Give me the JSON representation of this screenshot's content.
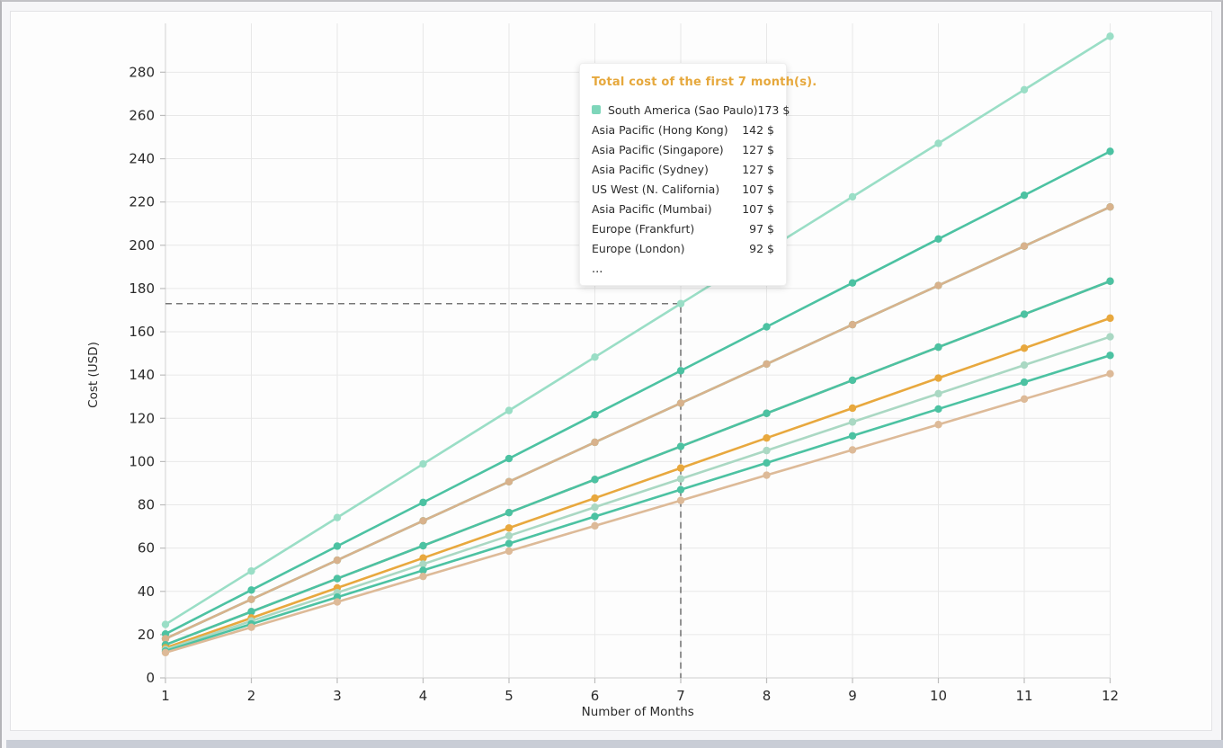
{
  "page": {
    "kind": "cost-comparison-line-chart"
  },
  "colors": {
    "tooltip_title": "#e6a83c",
    "grid": "#e8e8e8",
    "axis_line": "#d9d9d9",
    "tick_mark": "#bdbdbd",
    "tick_text": "#2b2b2b",
    "crosshair": "#777777",
    "card_background": "#fdfdfd",
    "page_background": "#f6f6f8",
    "scrollbar": "#c9cdd6",
    "series_mint": "#9adec6",
    "series_green": "#4cc2a2",
    "series_tan": "#d8b28c",
    "series_gold": "#e8a83e",
    "series_pale_mint": "#aad8c3",
    "series_pale_tan": "#ddba98"
  },
  "tooltip": {
    "title": "Total cost of the first 7 month(s).",
    "rows": [
      {
        "label": "South America (Sao Paulo)",
        "value": "173 $",
        "marker": "#7ed6ba"
      },
      {
        "label": "Asia Pacific (Hong Kong)",
        "value": "142 $"
      },
      {
        "label": "Asia Pacific (Singapore)",
        "value": "127 $"
      },
      {
        "label": "Asia Pacific (Sydney)",
        "value": "127 $"
      },
      {
        "label": "US West (N. California)",
        "value": "107 $"
      },
      {
        "label": "Asia Pacific (Mumbai)",
        "value": "107 $"
      },
      {
        "label": "Europe (Frankfurt)",
        "value": "97 $"
      },
      {
        "label": "Europe (London)",
        "value": "92 $"
      }
    ],
    "ellipsis": "..."
  },
  "chart_data": {
    "type": "line",
    "title": "",
    "xlabel": "Number of Months",
    "ylabel": "Cost (USD)",
    "x": [
      1,
      2,
      3,
      4,
      5,
      6,
      7,
      8,
      9,
      10,
      11,
      12
    ],
    "x_tick_labels": [
      "1",
      "2",
      "3",
      "4",
      "5",
      "6",
      "7",
      "8",
      "9",
      "10",
      "11",
      "12"
    ],
    "y_ticks": [
      0,
      20,
      40,
      60,
      80,
      100,
      120,
      140,
      160,
      180,
      200,
      220,
      240,
      260,
      280
    ],
    "ylim": [
      0,
      302
    ],
    "grid": true,
    "legend_position": "none (values listed in tooltip)",
    "crosshair": {
      "month": 7,
      "value": 173
    },
    "series": [
      {
        "id": "sao-paulo",
        "name": "South America (Sao Paulo)",
        "listed_in_tooltip": true,
        "total_first_7_months": 173,
        "color": "#9adec6",
        "values": [
          24.7,
          49.4,
          74.1,
          98.9,
          123.6,
          148.3,
          173.0,
          197.7,
          222.4,
          247.1,
          271.9,
          296.6
        ]
      },
      {
        "id": "hong-kong",
        "name": "Asia Pacific (Hong Kong)",
        "listed_in_tooltip": true,
        "total_first_7_months": 142,
        "color": "#4cc2a2",
        "values": [
          20.3,
          40.6,
          60.9,
          81.1,
          101.4,
          121.7,
          142.0,
          162.3,
          182.6,
          202.9,
          223.1,
          243.4
        ]
      },
      {
        "id": "singapore",
        "name": "Asia Pacific (Singapore)",
        "listed_in_tooltip": true,
        "total_first_7_months": 127,
        "color": "#4cc2a2",
        "values": [
          18.1,
          36.3,
          54.4,
          72.6,
          90.7,
          108.9,
          127.0,
          145.1,
          163.3,
          181.4,
          199.6,
          217.7
        ]
      },
      {
        "id": "sydney",
        "name": "Asia Pacific (Sydney)",
        "listed_in_tooltip": true,
        "total_first_7_months": 127,
        "color": "#d8b28c",
        "values": [
          18.1,
          36.3,
          54.4,
          72.6,
          90.7,
          108.9,
          127.0,
          145.1,
          163.3,
          181.4,
          199.6,
          217.7
        ]
      },
      {
        "id": "n-california",
        "name": "US West (N. California)",
        "listed_in_tooltip": true,
        "total_first_7_months": 107,
        "color": "#d8b28c",
        "values": [
          15.3,
          30.6,
          45.9,
          61.1,
          76.4,
          91.7,
          107.0,
          122.3,
          137.6,
          152.9,
          168.1,
          183.4
        ]
      },
      {
        "id": "mumbai",
        "name": "Asia Pacific (Mumbai)",
        "listed_in_tooltip": true,
        "total_first_7_months": 107,
        "color": "#4cc2a2",
        "values": [
          15.3,
          30.6,
          45.9,
          61.1,
          76.4,
          91.7,
          107.0,
          122.3,
          137.6,
          152.9,
          168.1,
          183.4
        ]
      },
      {
        "id": "frankfurt",
        "name": "Europe (Frankfurt)",
        "listed_in_tooltip": true,
        "total_first_7_months": 97,
        "color": "#e8a83e",
        "values": [
          13.9,
          27.7,
          41.6,
          55.4,
          69.3,
          83.1,
          97.0,
          110.9,
          124.7,
          138.6,
          152.4,
          166.3
        ]
      },
      {
        "id": "london",
        "name": "Europe (London)",
        "listed_in_tooltip": true,
        "total_first_7_months": 92,
        "color": "#aad8c3",
        "values": [
          13.1,
          26.3,
          39.4,
          52.6,
          65.7,
          78.9,
          92.0,
          105.1,
          118.3,
          131.4,
          144.6,
          157.7
        ]
      },
      {
        "id": "unlabeled-a",
        "name": "",
        "listed_in_tooltip": false,
        "total_first_7_months": 87,
        "color": "#4cc2a2",
        "values": [
          12.4,
          24.9,
          37.3,
          49.7,
          62.1,
          74.6,
          87.0,
          99.4,
          111.9,
          124.3,
          136.7,
          149.1
        ]
      },
      {
        "id": "unlabeled-b",
        "name": "",
        "listed_in_tooltip": false,
        "total_first_7_months": 82,
        "color": "#ddba98",
        "values": [
          11.7,
          23.4,
          35.1,
          46.9,
          58.6,
          70.3,
          82.0,
          93.7,
          105.4,
          117.1,
          128.9,
          140.6
        ]
      }
    ]
  }
}
